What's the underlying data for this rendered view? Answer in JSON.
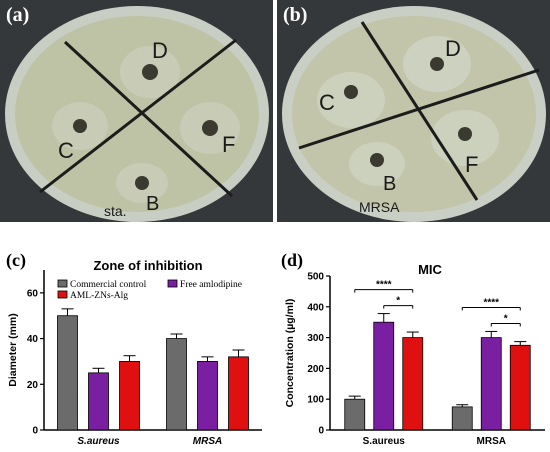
{
  "photos": [
    {
      "panel_label": "(a)",
      "sector_labels": [
        "D",
        "C",
        "F",
        "B"
      ],
      "handwriting": "sta."
    },
    {
      "panel_label": "(b)",
      "sector_labels": [
        "D",
        "C",
        "F",
        "B"
      ],
      "handwriting": "MRSA"
    }
  ],
  "colors": {
    "commercial_control": "#6b6b6b",
    "free_amlodipine": "#7a1fa2",
    "aml_zns_alg": "#e01010",
    "plate_dish": "#c9cfc2",
    "plate_agar": "#bdc1a4"
  },
  "chart_data": [
    {
      "panel_label": "(c)",
      "type": "bar",
      "title": "Zone of inhibition",
      "xlabel": "",
      "ylabel": "Diameter (mm)",
      "ylim": [
        0,
        70
      ],
      "yticks": [
        0,
        20,
        40,
        60
      ],
      "grid": false,
      "legend_position": "top",
      "categories": [
        "S.aureus",
        "MRSA"
      ],
      "series": [
        {
          "name": "Commercial control",
          "values": [
            50,
            40
          ],
          "errors": [
            3,
            2
          ]
        },
        {
          "name": "Free amlodipine",
          "values": [
            25,
            30
          ],
          "errors": [
            2,
            2
          ]
        },
        {
          "name": "AML-ZNs-Alg",
          "values": [
            30,
            32
          ],
          "errors": [
            2.5,
            3
          ]
        }
      ]
    },
    {
      "panel_label": "(d)",
      "type": "bar",
      "title": "MIC",
      "xlabel": "",
      "ylabel": "Concentration (µg/ml)",
      "ylim": [
        0,
        500
      ],
      "yticks": [
        0,
        100,
        200,
        300,
        400,
        500
      ],
      "grid": false,
      "categories": [
        "S.aureus",
        "MRSA"
      ],
      "series": [
        {
          "name": "Commercial control",
          "values": [
            100,
            75
          ],
          "errors": [
            10,
            7
          ]
        },
        {
          "name": "Free amlodipine",
          "values": [
            350,
            300
          ],
          "errors": [
            28,
            20
          ]
        },
        {
          "name": "AML-ZNs-Alg",
          "values": [
            300,
            275
          ],
          "errors": [
            18,
            12
          ]
        }
      ],
      "annotations": [
        {
          "category": "S.aureus",
          "from_series": 0,
          "to_series": 2,
          "label": "****"
        },
        {
          "category": "S.aureus",
          "from_series": 1,
          "to_series": 2,
          "label": "*"
        },
        {
          "category": "MRSA",
          "from_series": 0,
          "to_series": 2,
          "label": "****"
        },
        {
          "category": "MRSA",
          "from_series": 1,
          "to_series": 2,
          "label": "*"
        }
      ]
    }
  ]
}
